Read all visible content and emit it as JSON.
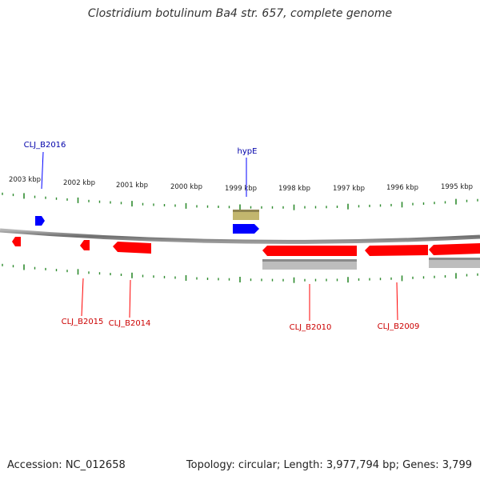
{
  "header": {
    "title": "Clostridium botulinum Ba4 str. 657, complete genome"
  },
  "footer": {
    "accession": "Accession: NC_012658",
    "summary": "Topology: circular; Length: 3,977,794 bp; Genes: 3,799"
  },
  "colors": {
    "forward_gene": "#0000ff",
    "reverse_gene": "#ff0000",
    "rna_feature": "#c2b66e",
    "cds_band": "#bbbbbb",
    "tick_marks": "#2e8b2e",
    "backbone": "#888888"
  },
  "scale_labels": [
    "2003 kbp",
    "2002 kbp",
    "2001 kbp",
    "2000 kbp",
    "1999 kbp",
    "1998 kbp",
    "1997 kbp",
    "1996 kbp",
    "1995 kbp"
  ],
  "gene_labels": {
    "forward": [
      "CLJ_B2016",
      "hypE"
    ],
    "reverse": [
      "CLJ_B2015",
      "CLJ_B2014",
      "CLJ_B2010",
      "CLJ_B2009"
    ]
  }
}
